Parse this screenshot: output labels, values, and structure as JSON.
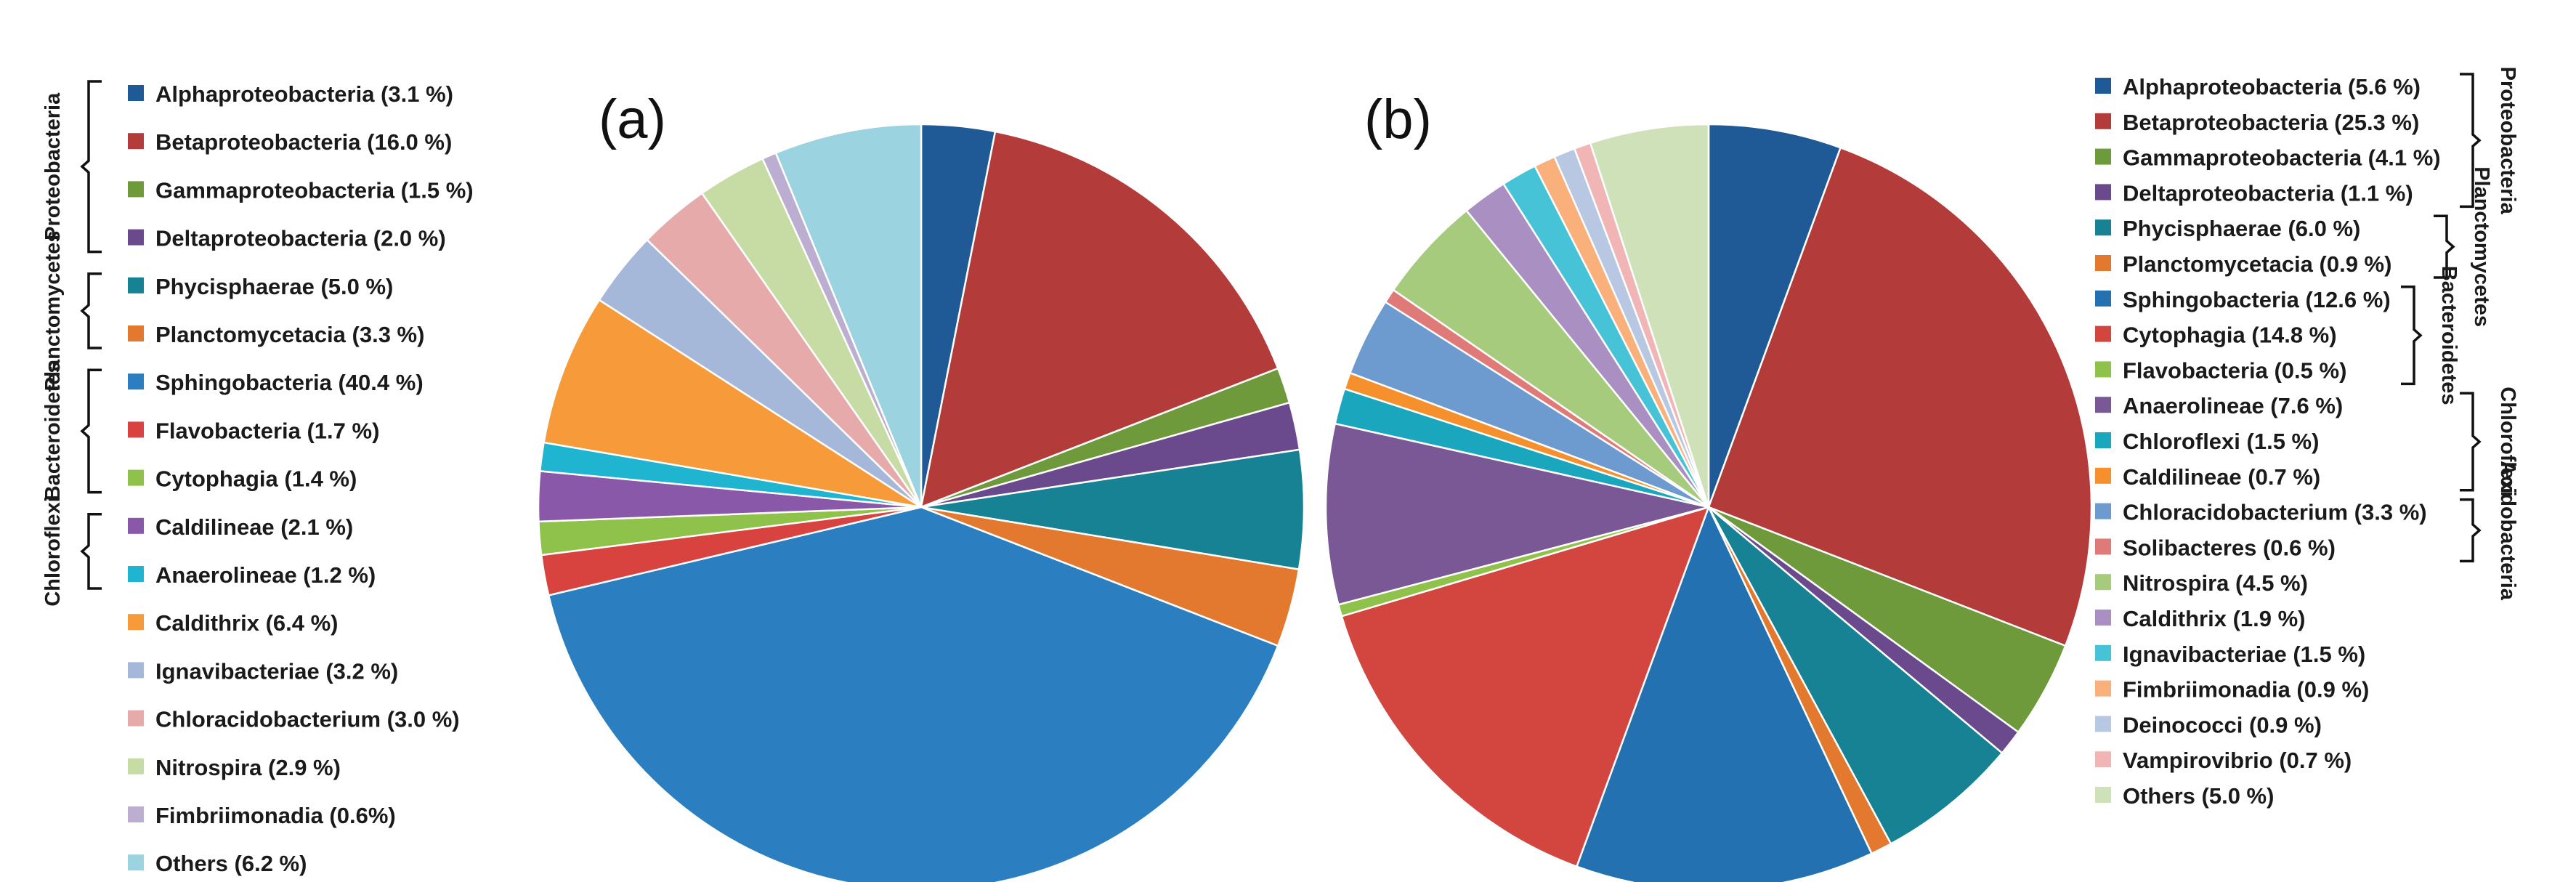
{
  "chart_data": [
    {
      "type": "pie",
      "panel_label": "(a)",
      "slices": [
        {
          "label": "Alphaproteobacteria (3.1 %)",
          "value": 3.1,
          "color": "#1f5a96"
        },
        {
          "label": "Betaproteobacteria (16.0 %)",
          "value": 16.0,
          "color": "#b33c3a"
        },
        {
          "label": "Gammaproteobacteria (1.5 %)",
          "value": 1.5,
          "color": "#6e9a3c"
        },
        {
          "label": "Deltaproteobacteria (2.0 %)",
          "value": 2.0,
          "color": "#6a4a8c"
        },
        {
          "label": "Phycisphaerae (5.0 %)",
          "value": 5.0,
          "color": "#168294"
        },
        {
          "label": "Planctomycetacia (3.3 %)",
          "value": 3.3,
          "color": "#e3792e"
        },
        {
          "label": "Sphingobacteria (40.4 %)",
          "value": 40.4,
          "color": "#2b7fc0"
        },
        {
          "label": "Flavobacteria (1.7 %)",
          "value": 1.7,
          "color": "#d8433f"
        },
        {
          "label": "Cytophagia (1.4 %)",
          "value": 1.4,
          "color": "#8ec24a"
        },
        {
          "label": "Caldilineae (2.1 %)",
          "value": 2.1,
          "color": "#8a58a8"
        },
        {
          "label": "Anaerolineae (1.2 %)",
          "value": 1.2,
          "color": "#1fb4cf"
        },
        {
          "label": "Caldithrix (6.4 %)",
          "value": 6.4,
          "color": "#f79a3a"
        },
        {
          "label": "Ignavibacteriae (3.2 %)",
          "value": 3.2,
          "color": "#a6b8d9"
        },
        {
          "label": "Chloracidobacterium (3.0 %)",
          "value": 3.0,
          "color": "#e7aaaa"
        },
        {
          "label": "Nitrospira (2.9 %)",
          "value": 2.9,
          "color": "#c7dca5"
        },
        {
          "label": "Fimbriimonadia (0.6%)",
          "value": 0.6,
          "color": "#bcaed1"
        },
        {
          "label": "Others (6.2 %)",
          "value": 6.2,
          "color": "#9bd3e0"
        }
      ],
      "groups": [
        {
          "label": "Proteobacteria",
          "first": 0,
          "last": 3
        },
        {
          "label": "Planctomycetes",
          "first": 4,
          "last": 5
        },
        {
          "label": "Bacteroidetes",
          "first": 6,
          "last": 8
        },
        {
          "label": "Chloroflexi",
          "first": 9,
          "last": 10
        }
      ]
    },
    {
      "type": "pie",
      "panel_label": "(b)",
      "slices": [
        {
          "label": "Alphaproteobacteria (5.6 %)",
          "value": 5.6,
          "color": "#1f5a96"
        },
        {
          "label": "Betaproteobacteria (25.3 %)",
          "value": 25.3,
          "color": "#b33c3a"
        },
        {
          "label": "Gammaproteobacteria (4.1 %)",
          "value": 4.1,
          "color": "#6e9a3c"
        },
        {
          "label": "Deltaproteobacteria (1.1 %)",
          "value": 1.1,
          "color": "#6a4a8c"
        },
        {
          "label": "Phycisphaerae (6.0 %)",
          "value": 6.0,
          "color": "#168294"
        },
        {
          "label": "Planctomycetacia (0.9 %)",
          "value": 0.9,
          "color": "#e3792e"
        },
        {
          "label": "Sphingobacteria (12.6 %)",
          "value": 12.6,
          "color": "#2371b0"
        },
        {
          "label": "Cytophagia (14.8 %)",
          "value": 14.8,
          "color": "#d2463f"
        },
        {
          "label": "Flavobacteria (0.5 %)",
          "value": 0.5,
          "color": "#8ec24a"
        },
        {
          "label": "Anaerolineae (7.6 %)",
          "value": 7.6,
          "color": "#7a5896"
        },
        {
          "label": "Chloroflexi (1.5 %)",
          "value": 1.5,
          "color": "#1aa6bd"
        },
        {
          "label": "Caldilineae (0.7 %)",
          "value": 0.7,
          "color": "#f5902c"
        },
        {
          "label": "Chloracidobacterium (3.3 %)",
          "value": 3.3,
          "color": "#6e9bcf"
        },
        {
          "label": "Solibacteres (0.6 %)",
          "value": 0.6,
          "color": "#e07a78"
        },
        {
          "label": "Nitrospira (4.5 %)",
          "value": 4.5,
          "color": "#a6cb7d"
        },
        {
          "label": "Caldithrix (1.9 %)",
          "value": 1.9,
          "color": "#a98fc2"
        },
        {
          "label": "Ignavibacteriae (1.5 %)",
          "value": 1.5,
          "color": "#47c3d8"
        },
        {
          "label": "Fimbriimonadia (0.9 %)",
          "value": 0.9,
          "color": "#f9b07a"
        },
        {
          "label": "Deinococci (0.9 %)",
          "value": 0.9,
          "color": "#b8c8e2"
        },
        {
          "label": "Vampirovibrio (0.7 %)",
          "value": 0.7,
          "color": "#f0b5b4"
        },
        {
          "label": "Others (5.0 %)",
          "value": 5.0,
          "color": "#cfe1b8"
        }
      ],
      "groups": [
        {
          "label": "Proteobacteria",
          "first": 0,
          "last": 3
        },
        {
          "label": "Planctomycetes",
          "first": 4,
          "last": 5
        },
        {
          "label": "Bacteroidetes",
          "first": 6,
          "last": 8
        },
        {
          "label": "Chloroflexi",
          "first": 9,
          "last": 11
        },
        {
          "label": "Acidobacteria",
          "first": 12,
          "last": 13
        }
      ]
    }
  ]
}
